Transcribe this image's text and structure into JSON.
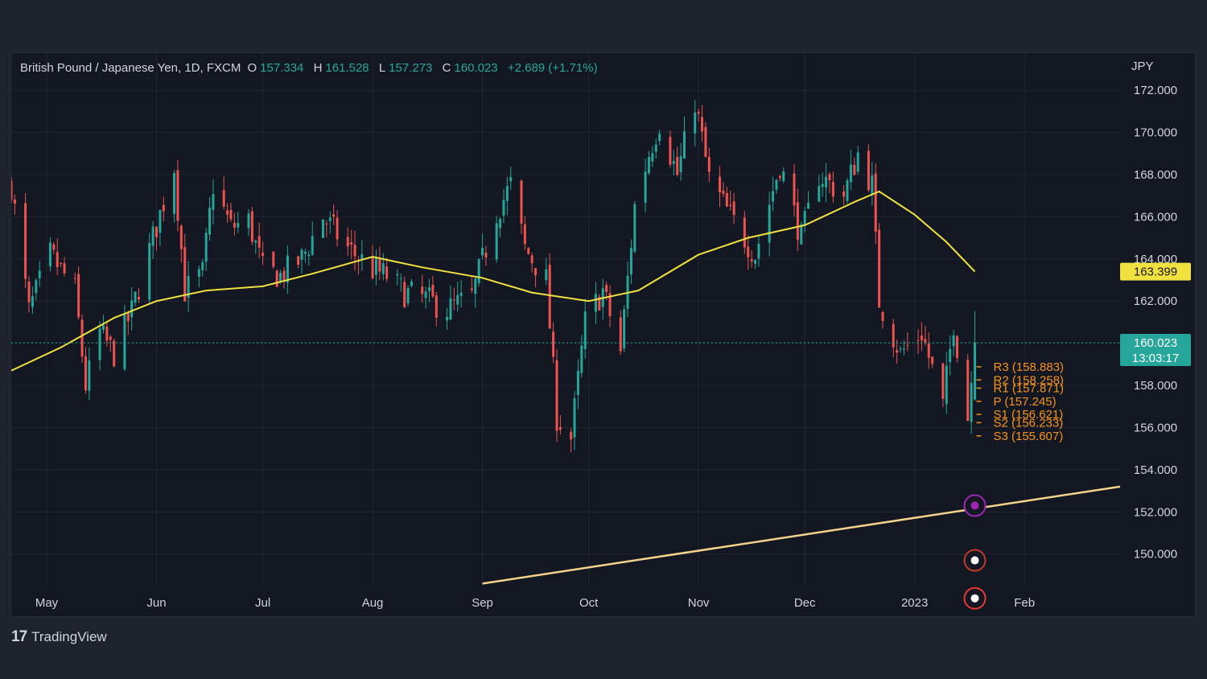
{
  "header": {
    "symbol": "British Pound / Japanese Yen, 1D, FXCM",
    "open_label": "O",
    "open": "157.334",
    "high_label": "H",
    "high": "161.528",
    "low_label": "L",
    "low": "157.273",
    "close_label": "C",
    "close": "160.023",
    "change": "+2.689 (+1.71%)"
  },
  "currency": "JPY",
  "branding": {
    "name": "TradingView",
    "mark": "17"
  },
  "colors": {
    "background": "#131722",
    "page": "#1e222d",
    "up": "#26a69a",
    "down": "#ef5350",
    "ma": "#f0e040",
    "trendline": "#f5d38a",
    "pivots": "#f7931a",
    "grid": "#232632"
  },
  "chart_data": {
    "type": "candlestick",
    "title": "British Pound / Japanese Yen, 1D, FXCM",
    "ylim": [
      148.5,
      173.0
    ],
    "y_ticks": [
      "172.000",
      "170.000",
      "168.000",
      "166.000",
      "164.000",
      "162.000",
      "160.000",
      "158.000",
      "156.000",
      "154.000",
      "152.000",
      "150.000"
    ],
    "x_tick_labels": [
      "May",
      "Jun",
      "Jul",
      "Aug",
      "Sep",
      "Oct",
      "Nov",
      "Dec",
      "2023",
      "Feb"
    ],
    "x_ticks_dates": [
      "2022-05-01",
      "2022-06-01",
      "2022-07-01",
      "2022-08-01",
      "2022-09-01",
      "2022-10-01",
      "2022-11-01",
      "2022-12-01",
      "2023-01-01",
      "2023-02-01"
    ],
    "x_range": [
      "2022-04-21",
      "2023-02-28"
    ],
    "price_badges": [
      {
        "label": "163.399",
        "value": 163.399,
        "color": "#f0e040"
      },
      {
        "label": "160.023",
        "sublabel": "13:03:17",
        "value": 160.023,
        "color": "#26a69a"
      }
    ],
    "last_price": 160.023,
    "moving_average": {
      "dates": [
        "2022-04-21",
        "2022-05-05",
        "2022-05-20",
        "2022-06-01",
        "2022-06-15",
        "2022-07-01",
        "2022-07-15",
        "2022-08-01",
        "2022-08-15",
        "2022-09-01",
        "2022-09-15",
        "2022-10-01",
        "2022-10-15",
        "2022-11-01",
        "2022-11-15",
        "2022-12-01",
        "2022-12-15",
        "2022-12-22",
        "2023-01-01",
        "2023-01-10",
        "2023-01-18"
      ],
      "values": [
        158.7,
        159.8,
        161.2,
        162.0,
        162.5,
        162.7,
        163.3,
        164.1,
        163.6,
        163.1,
        162.4,
        162.0,
        162.5,
        164.2,
        165.0,
        165.6,
        166.7,
        167.2,
        166.1,
        164.8,
        163.4
      ]
    },
    "trendline": {
      "start": [
        "2022-09-01",
        148.6
      ],
      "end": [
        "2023-02-28",
        153.2
      ]
    },
    "pivots": [
      {
        "label": "R3 (158.883)",
        "value": 158.883
      },
      {
        "label": "R2 (158.258)",
        "value": 158.258
      },
      {
        "label": "R1 (157.871)",
        "value": 157.871
      },
      {
        "label": "P (157.245)",
        "value": 157.245
      },
      {
        "label": "S1 (156.621)",
        "value": 156.621
      },
      {
        "label": "S2 (156.233)",
        "value": 156.233
      },
      {
        "label": "S3 (155.607)",
        "value": 155.607
      }
    ],
    "price_path": {
      "dates": [
        "2022-04-21",
        "2022-04-26",
        "2022-05-02",
        "2022-05-09",
        "2022-05-12",
        "2022-05-16",
        "2022-05-20",
        "2022-05-25",
        "2022-05-31",
        "2022-06-06",
        "2022-06-09",
        "2022-06-14",
        "2022-06-17",
        "2022-06-22",
        "2022-06-27",
        "2022-07-01",
        "2022-07-06",
        "2022-07-12",
        "2022-07-18",
        "2022-07-25",
        "2022-08-01",
        "2022-08-05",
        "2022-08-10",
        "2022-08-16",
        "2022-08-22",
        "2022-08-29",
        "2022-09-05",
        "2022-09-09",
        "2022-09-13",
        "2022-09-19",
        "2022-09-22",
        "2022-09-26",
        "2022-09-30",
        "2022-10-05",
        "2022-10-10",
        "2022-10-14",
        "2022-10-18",
        "2022-10-21",
        "2022-10-26",
        "2022-10-31",
        "2022-11-04",
        "2022-11-10",
        "2022-11-17",
        "2022-11-24",
        "2022-11-30",
        "2022-12-05",
        "2022-12-12",
        "2022-12-16",
        "2022-12-20",
        "2022-12-22",
        "2022-12-28",
        "2023-01-03",
        "2023-01-09",
        "2023-01-12",
        "2023-01-16",
        "2023-01-18"
      ],
      "values": [
        167.5,
        161.5,
        164.2,
        162.5,
        158.0,
        160.5,
        159.5,
        161.5,
        165.0,
        168.4,
        162.5,
        163.3,
        167.5,
        165.5,
        165.8,
        163.5,
        163.2,
        164.0,
        166.0,
        164.5,
        163.5,
        163.2,
        162.4,
        162.1,
        161.6,
        162.2,
        166.2,
        167.5,
        164.5,
        163.0,
        156.5,
        155.5,
        161.0,
        162.5,
        159.6,
        166.5,
        169.0,
        170.5,
        168.0,
        171.5,
        167.8,
        166.0,
        164.2,
        168.5,
        165.0,
        168.0,
        167.0,
        169.0,
        167.5,
        162.0,
        159.5,
        160.5,
        157.0,
        161.0,
        156.5,
        160.023
      ]
    }
  }
}
